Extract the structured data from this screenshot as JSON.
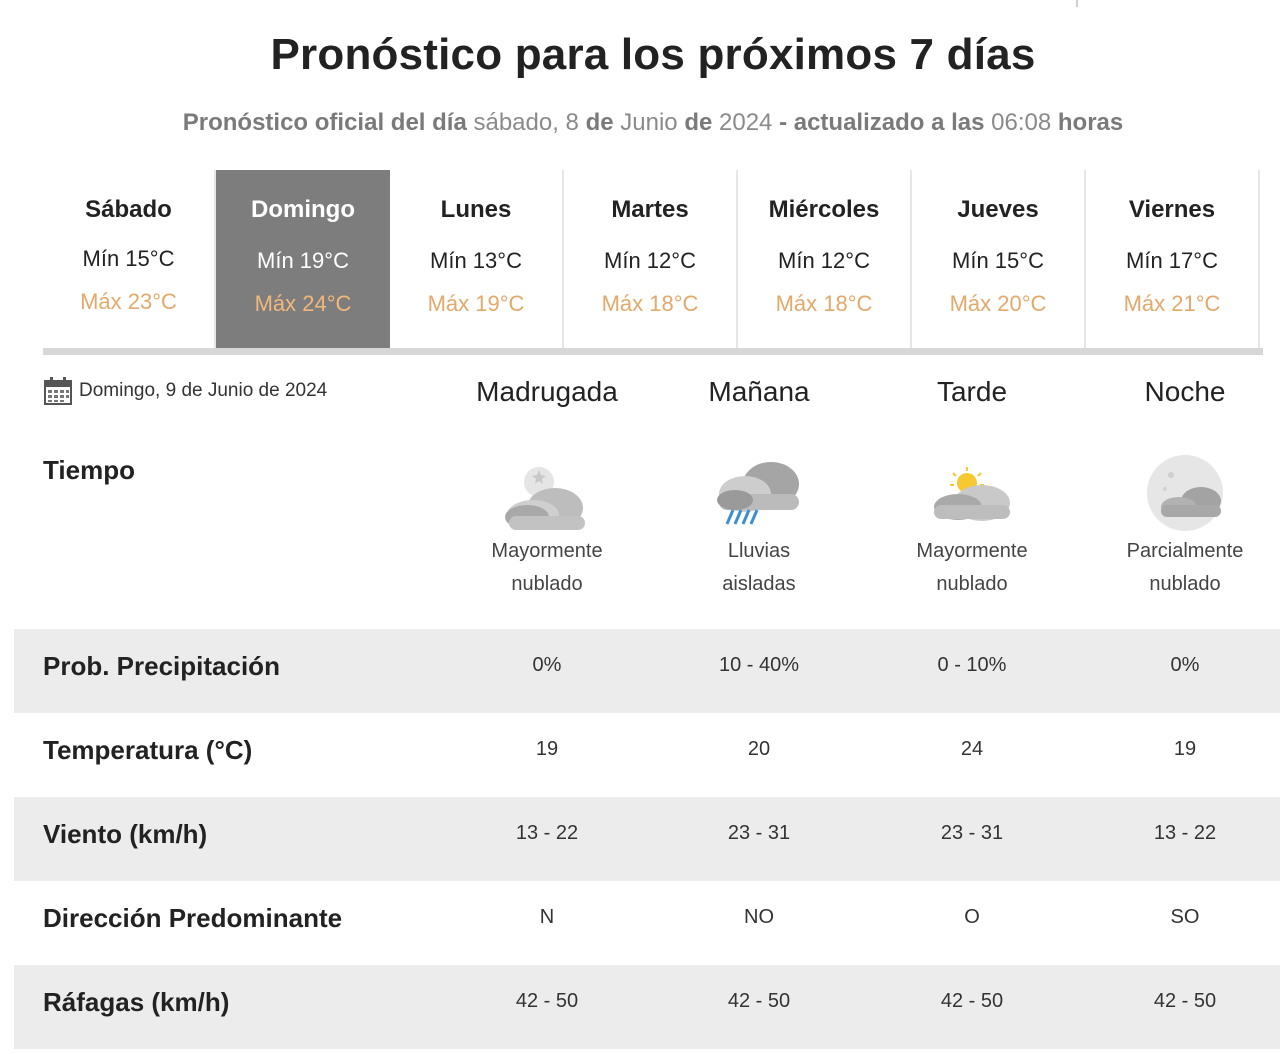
{
  "page": {
    "title": "Pronóstico para los próximos 7 días",
    "subtitle_prefix": "Pronóstico oficial del día",
    "subtitle_date_weekday": "sábado, 8",
    "subtitle_de1": "de",
    "subtitle_month": "Junio",
    "subtitle_de2": "de",
    "subtitle_year": "2024",
    "subtitle_mid": "- actualizado a las",
    "subtitle_time": "06:08",
    "subtitle_suffix": "horas"
  },
  "days": [
    {
      "name": "Sábado",
      "min": "Mín 15°C",
      "max": "Máx 23°C"
    },
    {
      "name": "Domingo",
      "min": "Mín 19°C",
      "max": "Máx 24°C",
      "active": true
    },
    {
      "name": "Lunes",
      "min": "Mín 13°C",
      "max": "Máx 19°C"
    },
    {
      "name": "Martes",
      "min": "Mín 12°C",
      "max": "Máx 18°C"
    },
    {
      "name": "Miércoles",
      "min": "Mín 12°C",
      "max": "Máx 18°C"
    },
    {
      "name": "Jueves",
      "min": "Mín 15°C",
      "max": "Máx 20°C"
    },
    {
      "name": "Viernes",
      "min": "Mín 17°C",
      "max": "Máx 21°C"
    }
  ],
  "detail": {
    "date_label": "Domingo, 9 de Junio de 2024",
    "calendar_icon": "calendar-icon",
    "periods": [
      "Madrugada",
      "Mañana",
      "Tarde",
      "Noche"
    ],
    "tiempo_label": "Tiempo",
    "weather": [
      {
        "icon": "cloudy-night-icon",
        "line1": "Mayormente",
        "line2": "nublado"
      },
      {
        "icon": "rain-cloud-icon",
        "line1": "Lluvias",
        "line2": "aisladas"
      },
      {
        "icon": "sun-cloud-icon",
        "line1": "Mayormente",
        "line2": "nublado"
      },
      {
        "icon": "moon-cloud-icon",
        "line1": "Parcialmente",
        "line2": "nublado"
      }
    ],
    "rows": [
      {
        "label": "Prob. Precipitación",
        "values": [
          "0%",
          "10 - 40%",
          "0 - 10%",
          "0%"
        ]
      },
      {
        "label": "Temperatura (°C)",
        "values": [
          "19",
          "20",
          "24",
          "19"
        ]
      },
      {
        "label": "Viento (km/h)",
        "values": [
          "13 - 22",
          "23 - 31",
          "23 - 31",
          "13 - 22"
        ]
      },
      {
        "label": "Dirección Predominante",
        "values": [
          "N",
          "NO",
          "O",
          "SO"
        ]
      },
      {
        "label": "Ráfagas (km/h)",
        "values": [
          "42 - 50",
          "42 - 50",
          "42 - 50",
          "42 - 50"
        ]
      }
    ]
  },
  "colors": {
    "max_temp": "#e3a96a",
    "active_tab": "#7d7d7d",
    "shaded_row": "#ececec"
  }
}
